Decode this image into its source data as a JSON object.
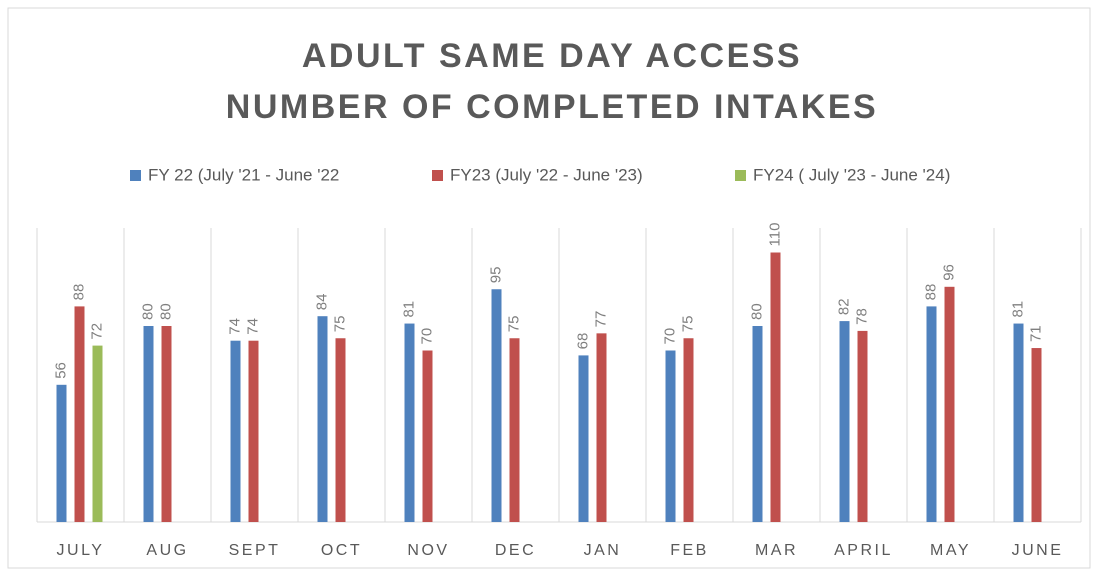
{
  "chart_data": {
    "type": "bar",
    "title": [
      "ADULT SAME DAY ACCESS",
      "NUMBER OF COMPLETED INTAKES"
    ],
    "categories": [
      "JULY",
      "AUG",
      "SEPT",
      "OCT",
      "NOV",
      "DEC",
      "JAN",
      "FEB",
      "MAR",
      "APRIL",
      "MAY",
      "JUNE"
    ],
    "series": [
      {
        "name": "FY 22 (July '21 - June '22",
        "color": "#4f81bd",
        "values": [
          56,
          80,
          74,
          84,
          81,
          95,
          68,
          70,
          80,
          82,
          88,
          81
        ]
      },
      {
        "name": "FY23 (July '22 - June '23)",
        "color": "#c0504d",
        "values": [
          88,
          80,
          74,
          75,
          70,
          75,
          77,
          75,
          110,
          78,
          96,
          71
        ]
      },
      {
        "name": "FY24 ( July '23 - June '24)",
        "color": "#9bbb59",
        "values": [
          72,
          null,
          null,
          null,
          null,
          null,
          null,
          null,
          null,
          null,
          null,
          null
        ]
      }
    ],
    "ylim": [
      0,
      120
    ],
    "legend": "top"
  }
}
